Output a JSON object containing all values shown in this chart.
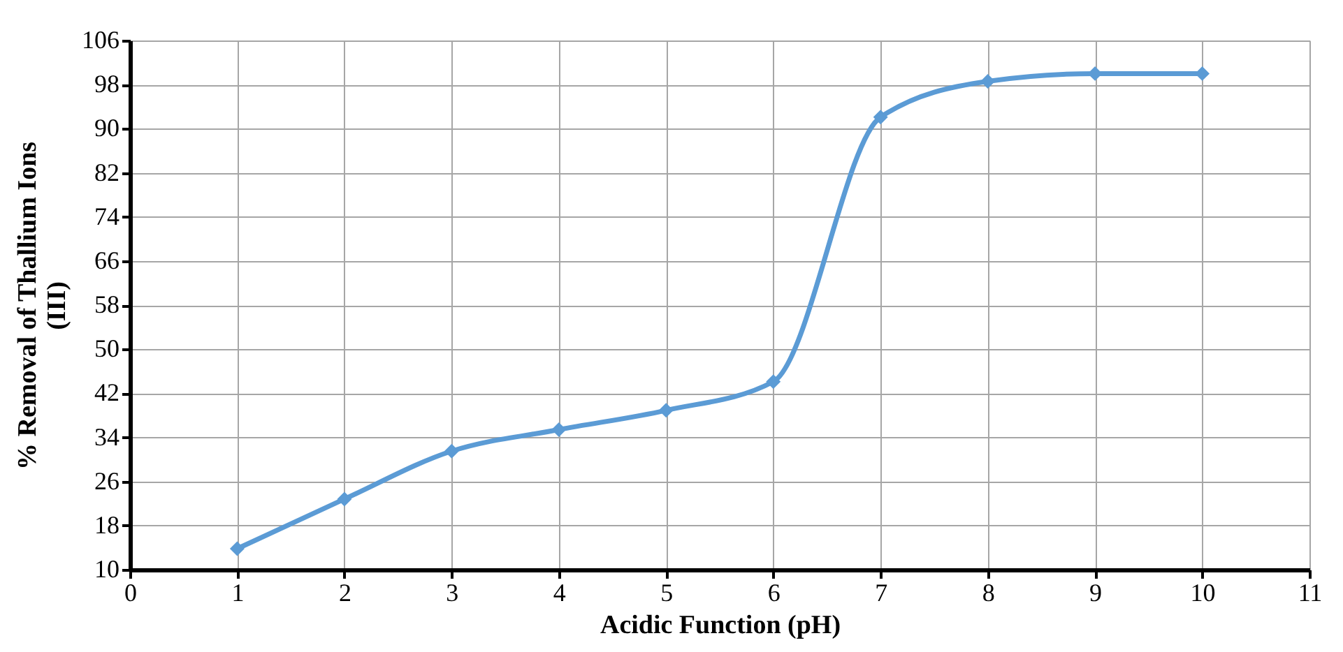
{
  "chart_data": {
    "type": "line",
    "x": [
      1,
      2,
      3,
      4,
      5,
      6,
      7,
      8,
      9,
      10
    ],
    "series": [
      {
        "color": "#5b9bd5",
        "values": [
          13.8,
          22.8,
          31.5,
          35.4,
          38.9,
          44.1,
          92.1,
          98.6,
          100,
          100
        ]
      }
    ],
    "xlabel": "Acidic Function (pH)",
    "ylabel": "% Removal of Thallium Ions (III)",
    "xlim": [
      0,
      11
    ],
    "xticks": [
      0,
      1,
      2,
      3,
      4,
      5,
      6,
      7,
      8,
      9,
      10,
      11
    ],
    "ylim": [
      10,
      106
    ],
    "yticks": [
      10,
      18,
      26,
      34,
      42,
      50,
      58,
      66,
      74,
      82,
      90,
      98,
      106
    ],
    "grid": true,
    "marker": "diamond",
    "line_style": "solid",
    "legend": false
  }
}
